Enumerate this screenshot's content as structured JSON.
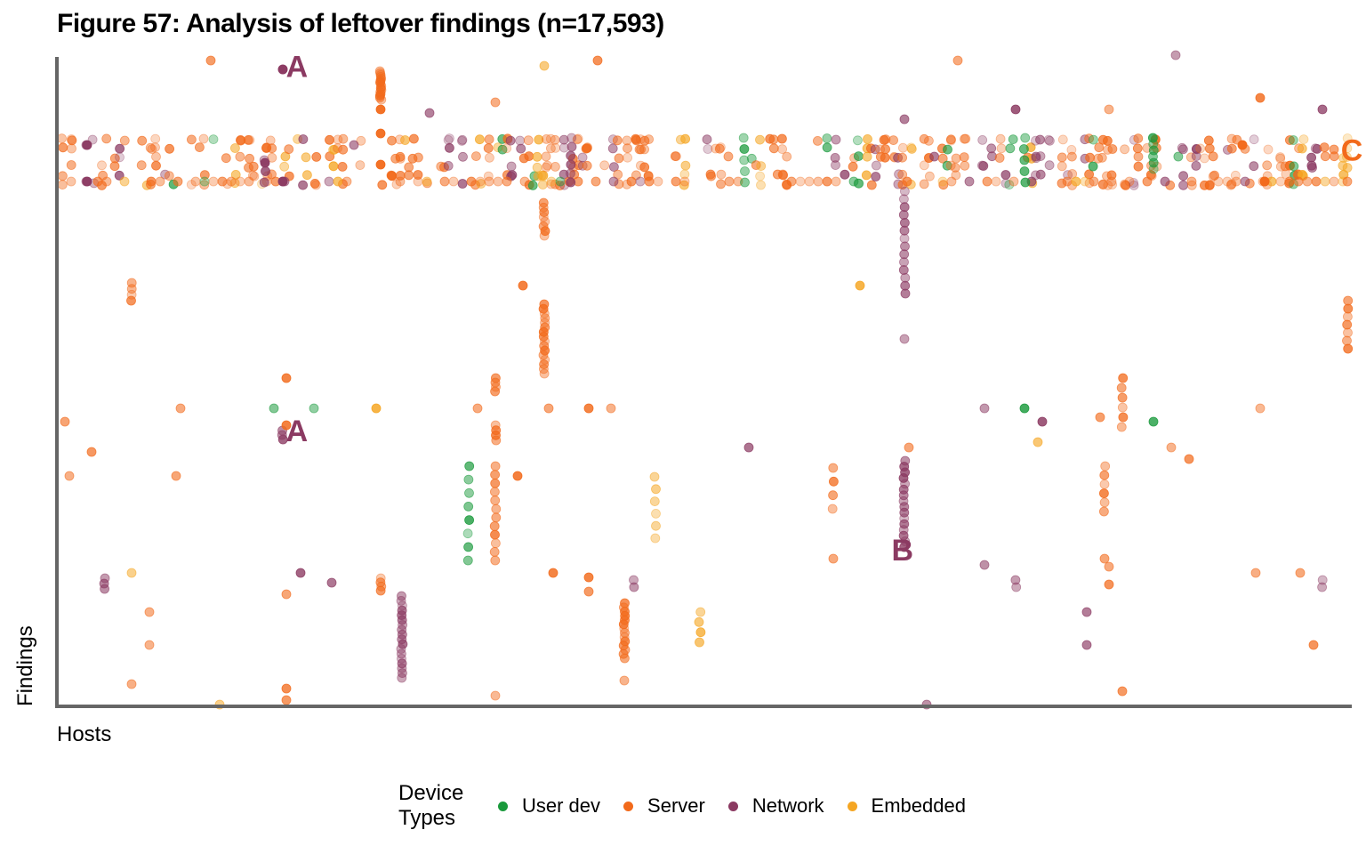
{
  "title": "Figure 57: Analysis of leftover findings (n=17,593)",
  "chart_data": {
    "type": "scatter",
    "title": "Figure 57: Analysis of leftover findings (n=17,593)",
    "xlabel": "Hosts",
    "ylabel": "Findings",
    "xlim": [
      0,
      100
    ],
    "ylim": [
      0,
      100
    ],
    "grid": false,
    "legend_position": "bottom",
    "legend_title": "Device Types",
    "series": [
      {
        "name": "User dev",
        "color": "#1a9a3c"
      },
      {
        "name": "Server",
        "color": "#f26a1b"
      },
      {
        "name": "Network",
        "color": "#8b3a62"
      },
      {
        "name": "Embedded",
        "color": "#f5a623"
      }
    ],
    "annotations": [
      {
        "label": "A",
        "x": 17.6,
        "y": 97.2,
        "color": "#8b3a62"
      },
      {
        "label": "A",
        "x": 17.6,
        "y": 40.8,
        "color": "#8b3a62"
      },
      {
        "label": "B",
        "x": 64.5,
        "y": 22.3,
        "color": "#8b3a62"
      },
      {
        "label": "C",
        "x": 99.3,
        "y": 84.2,
        "color": "#f26a1b"
      }
    ]
  },
  "legend": {
    "title_line1": "Device",
    "title_line2": "Types",
    "items": [
      {
        "label": "User dev",
        "color": "#1a9a3c"
      },
      {
        "label": "Server",
        "color": "#f26a1b"
      },
      {
        "label": "Network",
        "color": "#8b3a62"
      },
      {
        "label": "Embedded",
        "color": "#f5a623"
      }
    ]
  },
  "axes": {
    "xlabel": "Hosts",
    "ylabel": "Findings"
  }
}
